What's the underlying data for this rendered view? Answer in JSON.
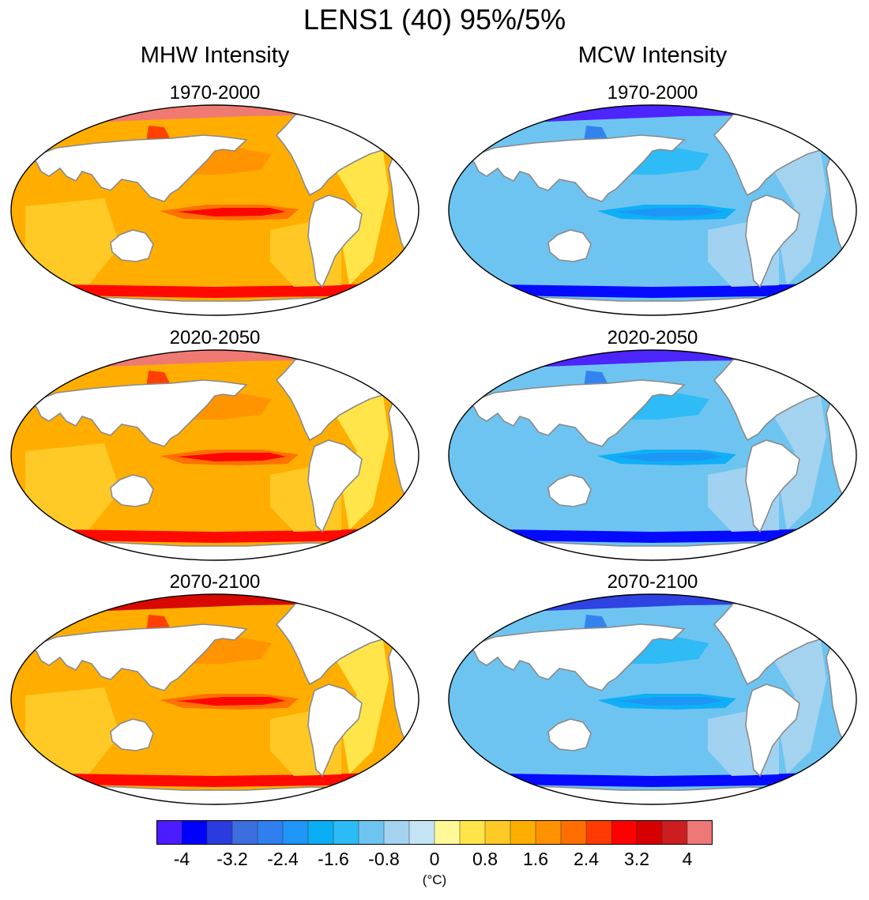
{
  "title": "LENS1 (40) 95%/5%",
  "columns": [
    {
      "title": "MHW Intensity",
      "kind": "mhw",
      "panels": [
        {
          "title": "1970-2000",
          "level": 0.15
        },
        {
          "title": "2020-2050",
          "level": 0.45
        },
        {
          "title": "2070-2100",
          "level": 0.85
        }
      ]
    },
    {
      "title": "MCW Intensity",
      "kind": "mcw",
      "panels": [
        {
          "title": "1970-2000",
          "level": 0.15
        },
        {
          "title": "2020-2050",
          "level": 0.45
        },
        {
          "title": "2070-2100",
          "level": 0.85
        }
      ]
    }
  ],
  "colorbar": {
    "units": "(°C)",
    "ticks": [
      "-4",
      "-3.2",
      "-2.4",
      "-1.6",
      "-0.8",
      "0",
      "0.8",
      "1.6",
      "2.4",
      "3.2",
      "4"
    ],
    "colors": [
      "#4b1cff",
      "#0000ff",
      "#2a3ce0",
      "#3c6ee0",
      "#2f7fee",
      "#1e96f5",
      "#0aaef5",
      "#2bbbf5",
      "#6ec4f0",
      "#a4d3f0",
      "#c4e4f5",
      "#fff899",
      "#ffe54a",
      "#ffc926",
      "#ffae00",
      "#ff9200",
      "#ff6e00",
      "#ff3a00",
      "#ff0000",
      "#d60000",
      "#cc1e1e",
      "#ee7777"
    ]
  },
  "chart_data": {
    "type": "heatmap",
    "title": "LENS1 (40) 95%/5%",
    "xlabel": "",
    "ylabel": "",
    "colorbar_label": "(°C)",
    "value_range": [
      -4.4,
      4.4
    ],
    "colorbar_ticks": [
      -4,
      -3.2,
      -2.4,
      -1.6,
      -0.8,
      0,
      0.8,
      1.6,
      2.4,
      3.2,
      4
    ],
    "panels": [
      {
        "column": "MHW Intensity",
        "period": "1970-2000"
      },
      {
        "column": "MHW Intensity",
        "period": "2020-2050"
      },
      {
        "column": "MHW Intensity",
        "period": "2070-2100"
      },
      {
        "column": "MCW Intensity",
        "period": "1970-2000"
      },
      {
        "column": "MCW Intensity",
        "period": "2020-2050"
      },
      {
        "column": "MCW Intensity",
        "period": "2070-2100"
      }
    ]
  }
}
